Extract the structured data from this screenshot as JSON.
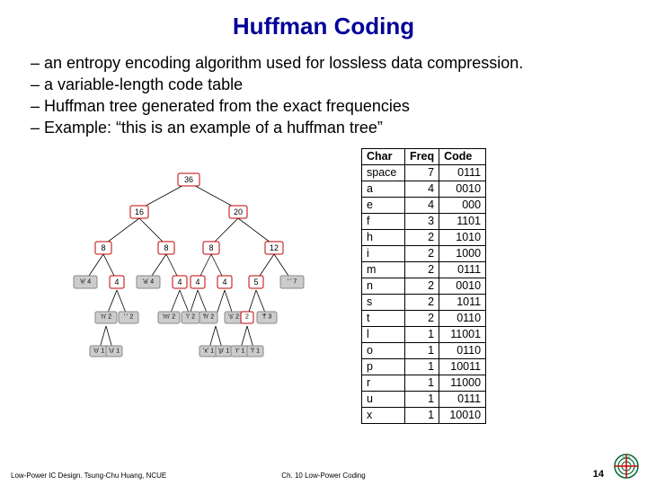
{
  "title": "Huffman Coding",
  "bullets": [
    "an entropy encoding algorithm used for lossless data compression.",
    "a variable-length code table",
    "Huffman tree generated from the exact frequencies",
    "Example: “this is an example of a huffman tree”"
  ],
  "table": {
    "columns": [
      "Char",
      "Freq",
      "Code"
    ],
    "rows": [
      [
        "space",
        "7",
        "0111"
      ],
      [
        "a",
        "4",
        "0010"
      ],
      [
        "e",
        "4",
        "000"
      ],
      [
        "f",
        "3",
        "1101"
      ],
      [
        "h",
        "2",
        "1010"
      ],
      [
        "i",
        "2",
        "1000"
      ],
      [
        "m",
        "2",
        "0111"
      ],
      [
        "n",
        "2",
        "0010"
      ],
      [
        "s",
        "2",
        "1011"
      ],
      [
        "t",
        "2",
        "0110"
      ],
      [
        "l",
        "1",
        "11001"
      ],
      [
        "o",
        "1",
        "0110"
      ],
      [
        "p",
        "1",
        "10011"
      ],
      [
        "r",
        "1",
        "11000"
      ],
      [
        "u",
        "1",
        "0111"
      ],
      [
        "x",
        "1",
        "10010"
      ]
    ],
    "header_bg": "#ffffff",
    "border_color": "#000000",
    "font_size": 12
  },
  "tree": {
    "root": "36",
    "level1": [
      "16",
      "20"
    ],
    "level2": [
      "8",
      "8",
      "8",
      "12"
    ],
    "level3_left_pairs": [
      {
        "leaf": "'e' 4",
        "n": "4"
      },
      {
        "leaf": "'a' 4",
        "n": "4"
      },
      {
        "n1": "4",
        "n2": "4"
      },
      {
        "n1": "5",
        "leaf": "' ' 7"
      }
    ],
    "level4": [
      "'n' 2",
      "' ' 2",
      "'m' 2",
      "'i' 2",
      "'h' 2",
      "'s' 2",
      "2",
      "'f' 3"
    ],
    "level5": [
      "'o' 1",
      "'u' 1",
      "'x' 1",
      "'p' 1",
      "'r' 1",
      "'l' 1"
    ],
    "node_fill_internal": "#ffffff",
    "node_fill_leaf": "#cccccc",
    "node_stroke": "#c00000",
    "edge_color": "#000000"
  },
  "footer": {
    "left": "Low-Power IC Design. Tsung-Chu Huang, NCUE",
    "mid": "Ch. 10 Low-Power Coding",
    "pagenum": "14"
  },
  "colors": {
    "title": "#000099",
    "text": "#000000",
    "bg": "#ffffff"
  }
}
